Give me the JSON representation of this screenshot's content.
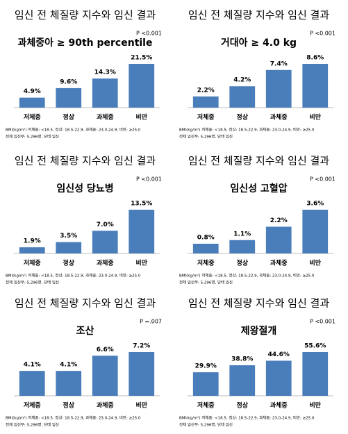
{
  "chart_data": [
    {
      "type": "bar",
      "title": "임신 전 체질량 지수와 임신 결과",
      "subtitle": "과체중아  ≥ 90th percentile",
      "annotation": "P <0.001",
      "categories": [
        "저체중",
        "정상",
        "과체중",
        "비만"
      ],
      "values": [
        4.9,
        9.6,
        14.3,
        21.5
      ],
      "value_labels": [
        "4.9%",
        "9.6%",
        "14.3%",
        "21.5%"
      ],
      "color": "#4a7ebb",
      "notes": [
        "BMI(kg/m²) 저체중: <18.5, 정상: 18.5-22.9, 과체중: 23.0-24.9, 비만: ≥25.0",
        "전체 임신부: 5,296명, 단태 임신"
      ]
    },
    {
      "type": "bar",
      "title": "임신 전 체질량 지수와 임신 결과",
      "subtitle": "거대아  ≥ 4.0 kg",
      "annotation": "P <0.001",
      "categories": [
        "저체중",
        "정상",
        "과체중",
        "비만"
      ],
      "values": [
        2.2,
        4.2,
        7.4,
        8.6
      ],
      "value_labels": [
        "2.2%",
        "4.2%",
        "7.4%",
        "8.6%"
      ],
      "color": "#4a7ebb",
      "notes": [
        "BMI(kg/m²) 저체중: <18.5, 정상: 18.5-22.9, 과체중: 23.0-24.9, 비만: ≥25.0",
        "전체 임신부: 5,296명, 단태 임신"
      ]
    },
    {
      "type": "bar",
      "title": "임신 전 체질량 지수와 임신 결과",
      "subtitle": "임신성 당뇨병",
      "annotation": "P <0.001",
      "categories": [
        "저체중",
        "정상",
        "과체중",
        "비만"
      ],
      "values": [
        1.9,
        3.5,
        7.0,
        13.5
      ],
      "value_labels": [
        "1.9%",
        "3.5%",
        "7.0%",
        "13.5%"
      ],
      "color": "#4a7ebb",
      "notes": [
        "BMI(kg/m²) 저체중: <18.5, 정상: 18.5-22.9, 과체중: 23.0-24.9, 비만: ≥25.0",
        "전체 임신부: 5,296명, 단태 임신"
      ]
    },
    {
      "type": "bar",
      "title": "임신 전 체질량 지수와 임신 결과",
      "subtitle": "임신성 고혈압",
      "annotation": "P <0.001",
      "categories": [
        "저체중",
        "정상",
        "과체중",
        "비만"
      ],
      "values": [
        0.8,
        1.1,
        2.2,
        3.6
      ],
      "value_labels": [
        "0.8%",
        "1.1%",
        "2.2%",
        "3.6%"
      ],
      "color": "#4a7ebb",
      "notes": [
        "BMI(kg/m²) 저체중: <18.5, 정상: 18.5-22.9, 과체중: 23.0-24.9, 비만: ≥25.0",
        "전체 임신부: 5,296명, 단태 임신"
      ]
    },
    {
      "type": "bar",
      "title": "임신 전 체질량 지수와 임신 결과",
      "subtitle": "조산",
      "annotation": "P =.007",
      "categories": [
        "저체중",
        "정상",
        "과체중",
        "비만"
      ],
      "values": [
        4.1,
        4.1,
        6.6,
        7.2
      ],
      "value_labels": [
        "4.1%",
        "4.1%",
        "6.6%",
        "7.2%"
      ],
      "color": "#4a7ebb",
      "notes": [
        "BMI(kg/m²) 저체중: <18.5, 정상: 18.5-22.9, 과체중: 23.0-24.9, 비만: ≥25.0",
        "전체 임신부: 5,296명, 단태 임신"
      ]
    },
    {
      "type": "bar",
      "title": "임신 전 체질량 지수와 임신 결과",
      "subtitle": "제왕절개",
      "annotation": "P <0.001",
      "categories": [
        "저체중",
        "정상",
        "과체중",
        "비만"
      ],
      "values": [
        29.9,
        38.8,
        44.6,
        55.6
      ],
      "value_labels": [
        "29.9%",
        "38.8%",
        "44.6%",
        "55.6%"
      ],
      "color": "#4a7ebb",
      "notes": [
        "BMI(kg/m²) 저체중: <18.5, 정상: 18.5-22.9, 과체중: 23.0-24.9, 비만: ≥25.0",
        "전체 임신부: 5,296명, 단태 임신"
      ]
    }
  ]
}
